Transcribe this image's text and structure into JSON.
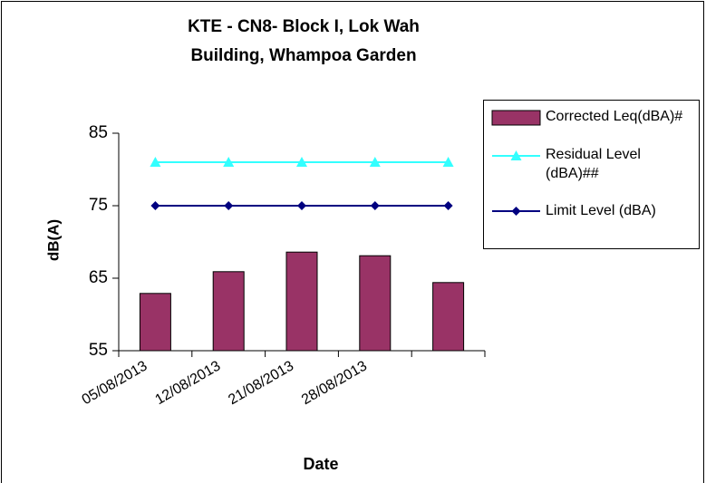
{
  "chart_data": {
    "type": "bar",
    "title": "KTE - CN8- Block I, Lok Wah Building, Whampoa Garden",
    "x_label": "Date",
    "y_label": "dB(A)",
    "categories": [
      "05/08/2013",
      "12/08/2013",
      "21/08/2013",
      "28/08/2013",
      null
    ],
    "series": [
      {
        "name": "Corrected Leq(dBA)#",
        "type": "bar",
        "color": "#993366",
        "values": [
          62.9,
          65.9,
          68.6,
          68.1,
          64.4
        ]
      },
      {
        "name": "Residual Level (dBA)##",
        "type": "line",
        "marker": "triangle",
        "color": "#33ffff",
        "values": [
          81,
          81,
          81,
          81,
          81
        ]
      },
      {
        "name": "Limit Level (dBA)",
        "type": "line",
        "marker": "diamond",
        "color": "#000080",
        "values": [
          75,
          75,
          75,
          75,
          75
        ]
      }
    ],
    "ylim": [
      55,
      85
    ],
    "yticks": [
      55,
      65,
      75,
      85
    ],
    "grid": false,
    "legend": "right"
  }
}
